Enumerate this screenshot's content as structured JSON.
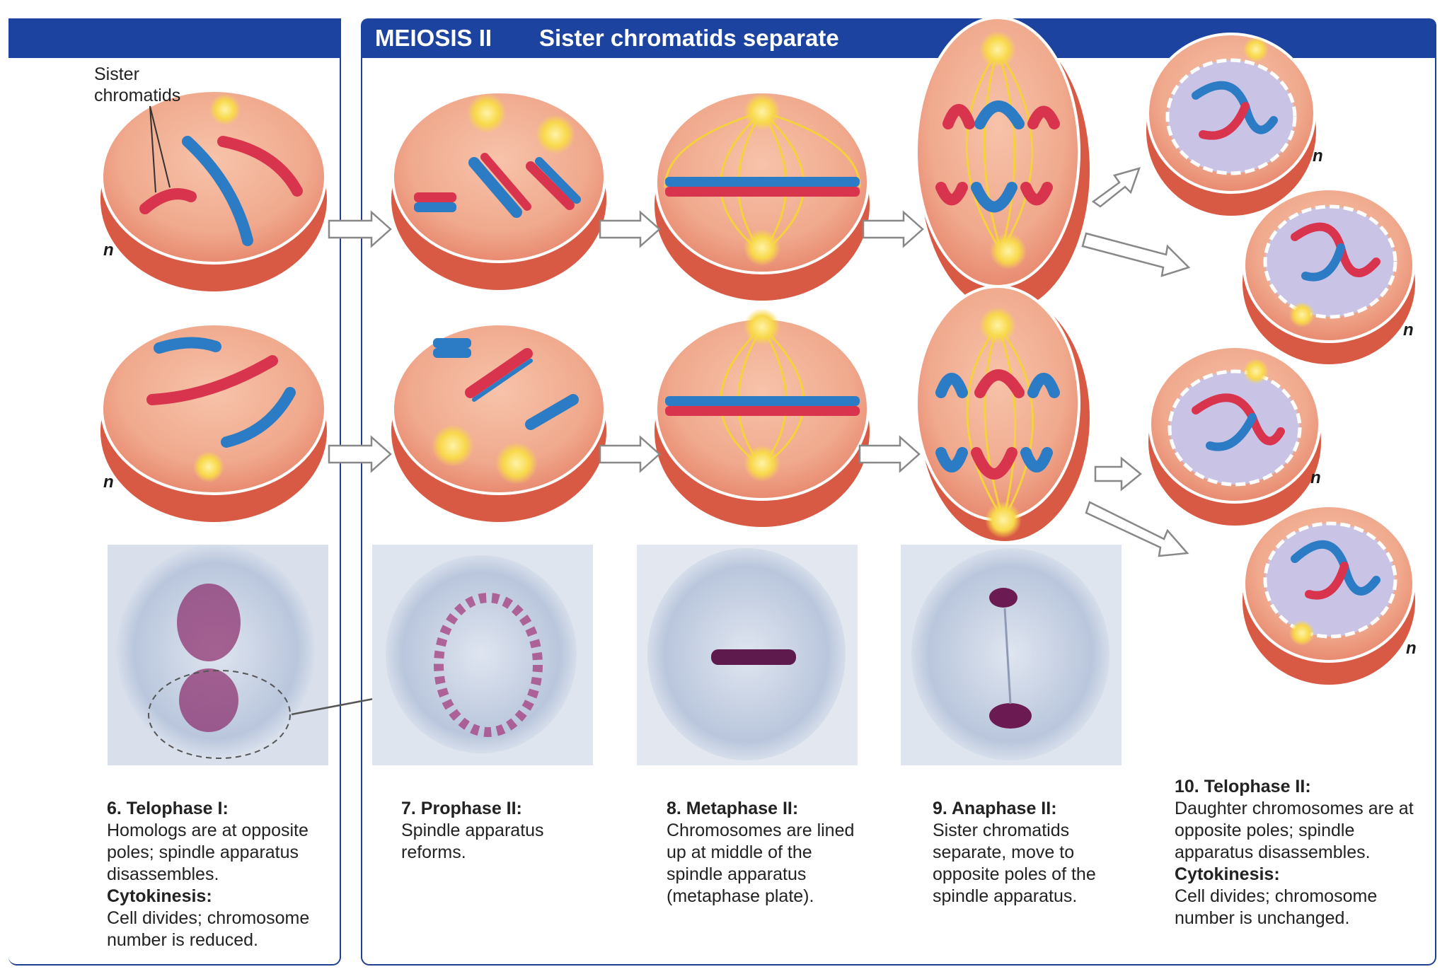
{
  "header": {
    "section_title": "MEIOSIS II",
    "section_subtitle": "Sister chromatids separate"
  },
  "callout": {
    "line1": "Sister",
    "line2": "chromatids"
  },
  "ploidy_label": "n",
  "colors": {
    "header_blue": "#1d43a0",
    "panel_border": "#1f3f8f",
    "chromosome_red": "#d9344e",
    "chromosome_blue": "#2b7cc4",
    "cell_fill": "#f0a98d",
    "spindle_yellow": "#f5d13c",
    "nucleus_lavender": "#c9c4e6",
    "micrograph_bg": "#d6deea",
    "stain_purple": "#8a2a6a"
  },
  "stages": [
    {
      "title": "6. Telophase I:",
      "body": "Homologs are at opposite poles; spindle apparatus disassembles.",
      "cytokinesis_label": "Cytokinesis:",
      "cytokinesis_body": "Cell divides; chromosome number is reduced."
    },
    {
      "title": "7. Prophase II:",
      "body": "Spindle apparatus reforms."
    },
    {
      "title": "8. Metaphase II:",
      "body": "Chromosomes are lined up at middle of the spindle apparatus (metaphase plate)."
    },
    {
      "title": "9. Anaphase II:",
      "body": "Sister chromatids separate, move to opposite poles of the spindle apparatus."
    },
    {
      "title": "10. Telophase II:",
      "body": "Daughter chromosomes are at opposite poles; spindle apparatus disassembles.",
      "cytokinesis_label": "Cytokinesis:",
      "cytokinesis_body": "Cell divides; chromosome number is unchanged."
    }
  ]
}
